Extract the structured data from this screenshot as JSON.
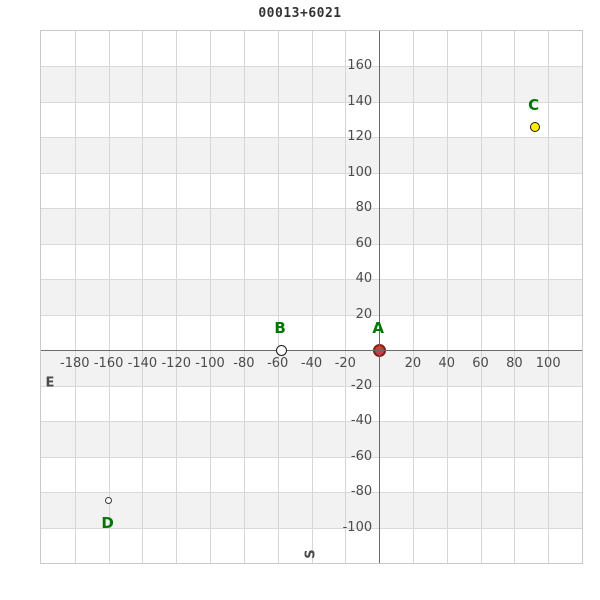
{
  "title": "00013+6021",
  "chart_data": {
    "type": "scatter",
    "title": "00013+6021",
    "xlim": [
      -200,
      120
    ],
    "ylim": [
      -120,
      180
    ],
    "x_ticks": [
      -180,
      -160,
      -140,
      -120,
      -100,
      -80,
      -60,
      -40,
      -20,
      20,
      40,
      60,
      80,
      100
    ],
    "y_ticks": [
      160,
      140,
      120,
      100,
      80,
      60,
      40,
      20,
      -20,
      -40,
      -60,
      -80,
      -100
    ],
    "grid": true,
    "stripe_interval": 20,
    "legend_position": "none",
    "axis_direction_labels": {
      "x_axis_left": "E",
      "y_axis_bottom": "S"
    },
    "points": [
      {
        "label": "A",
        "x": 0,
        "y": 0,
        "fill": "#c84141",
        "stroke": "#7e1e1e",
        "size": 13,
        "stroke_width": 2,
        "label_position": "above",
        "layer": "below-axes"
      },
      {
        "label": "B",
        "x": -58,
        "y": 0,
        "fill": "#ffffff",
        "stroke": "#1a1a1a",
        "size": 11,
        "stroke_width": 1.5,
        "label_position": "above",
        "layer": "above-axes"
      },
      {
        "label": "C",
        "x": 92,
        "y": 126,
        "fill": "#ffee00",
        "stroke": "#1a1a1a",
        "size": 10,
        "stroke_width": 1.5,
        "label_position": "above",
        "layer": "above-axes"
      },
      {
        "label": "D",
        "x": -160,
        "y": -85,
        "fill": "#ffffff",
        "stroke": "#3a3a3a",
        "size": 7,
        "stroke_width": 1,
        "label_position": "below",
        "layer": "above-axes"
      }
    ],
    "colors": {
      "stripe": "#f2f2f2",
      "grid": "#d6d6d6",
      "axis": "#6a6a6a",
      "tick_text": "#4b4b4b",
      "point_label": "#007700",
      "title_text": "#333333",
      "plot_border": "#c9c9c9",
      "background": "#ffffff"
    }
  }
}
